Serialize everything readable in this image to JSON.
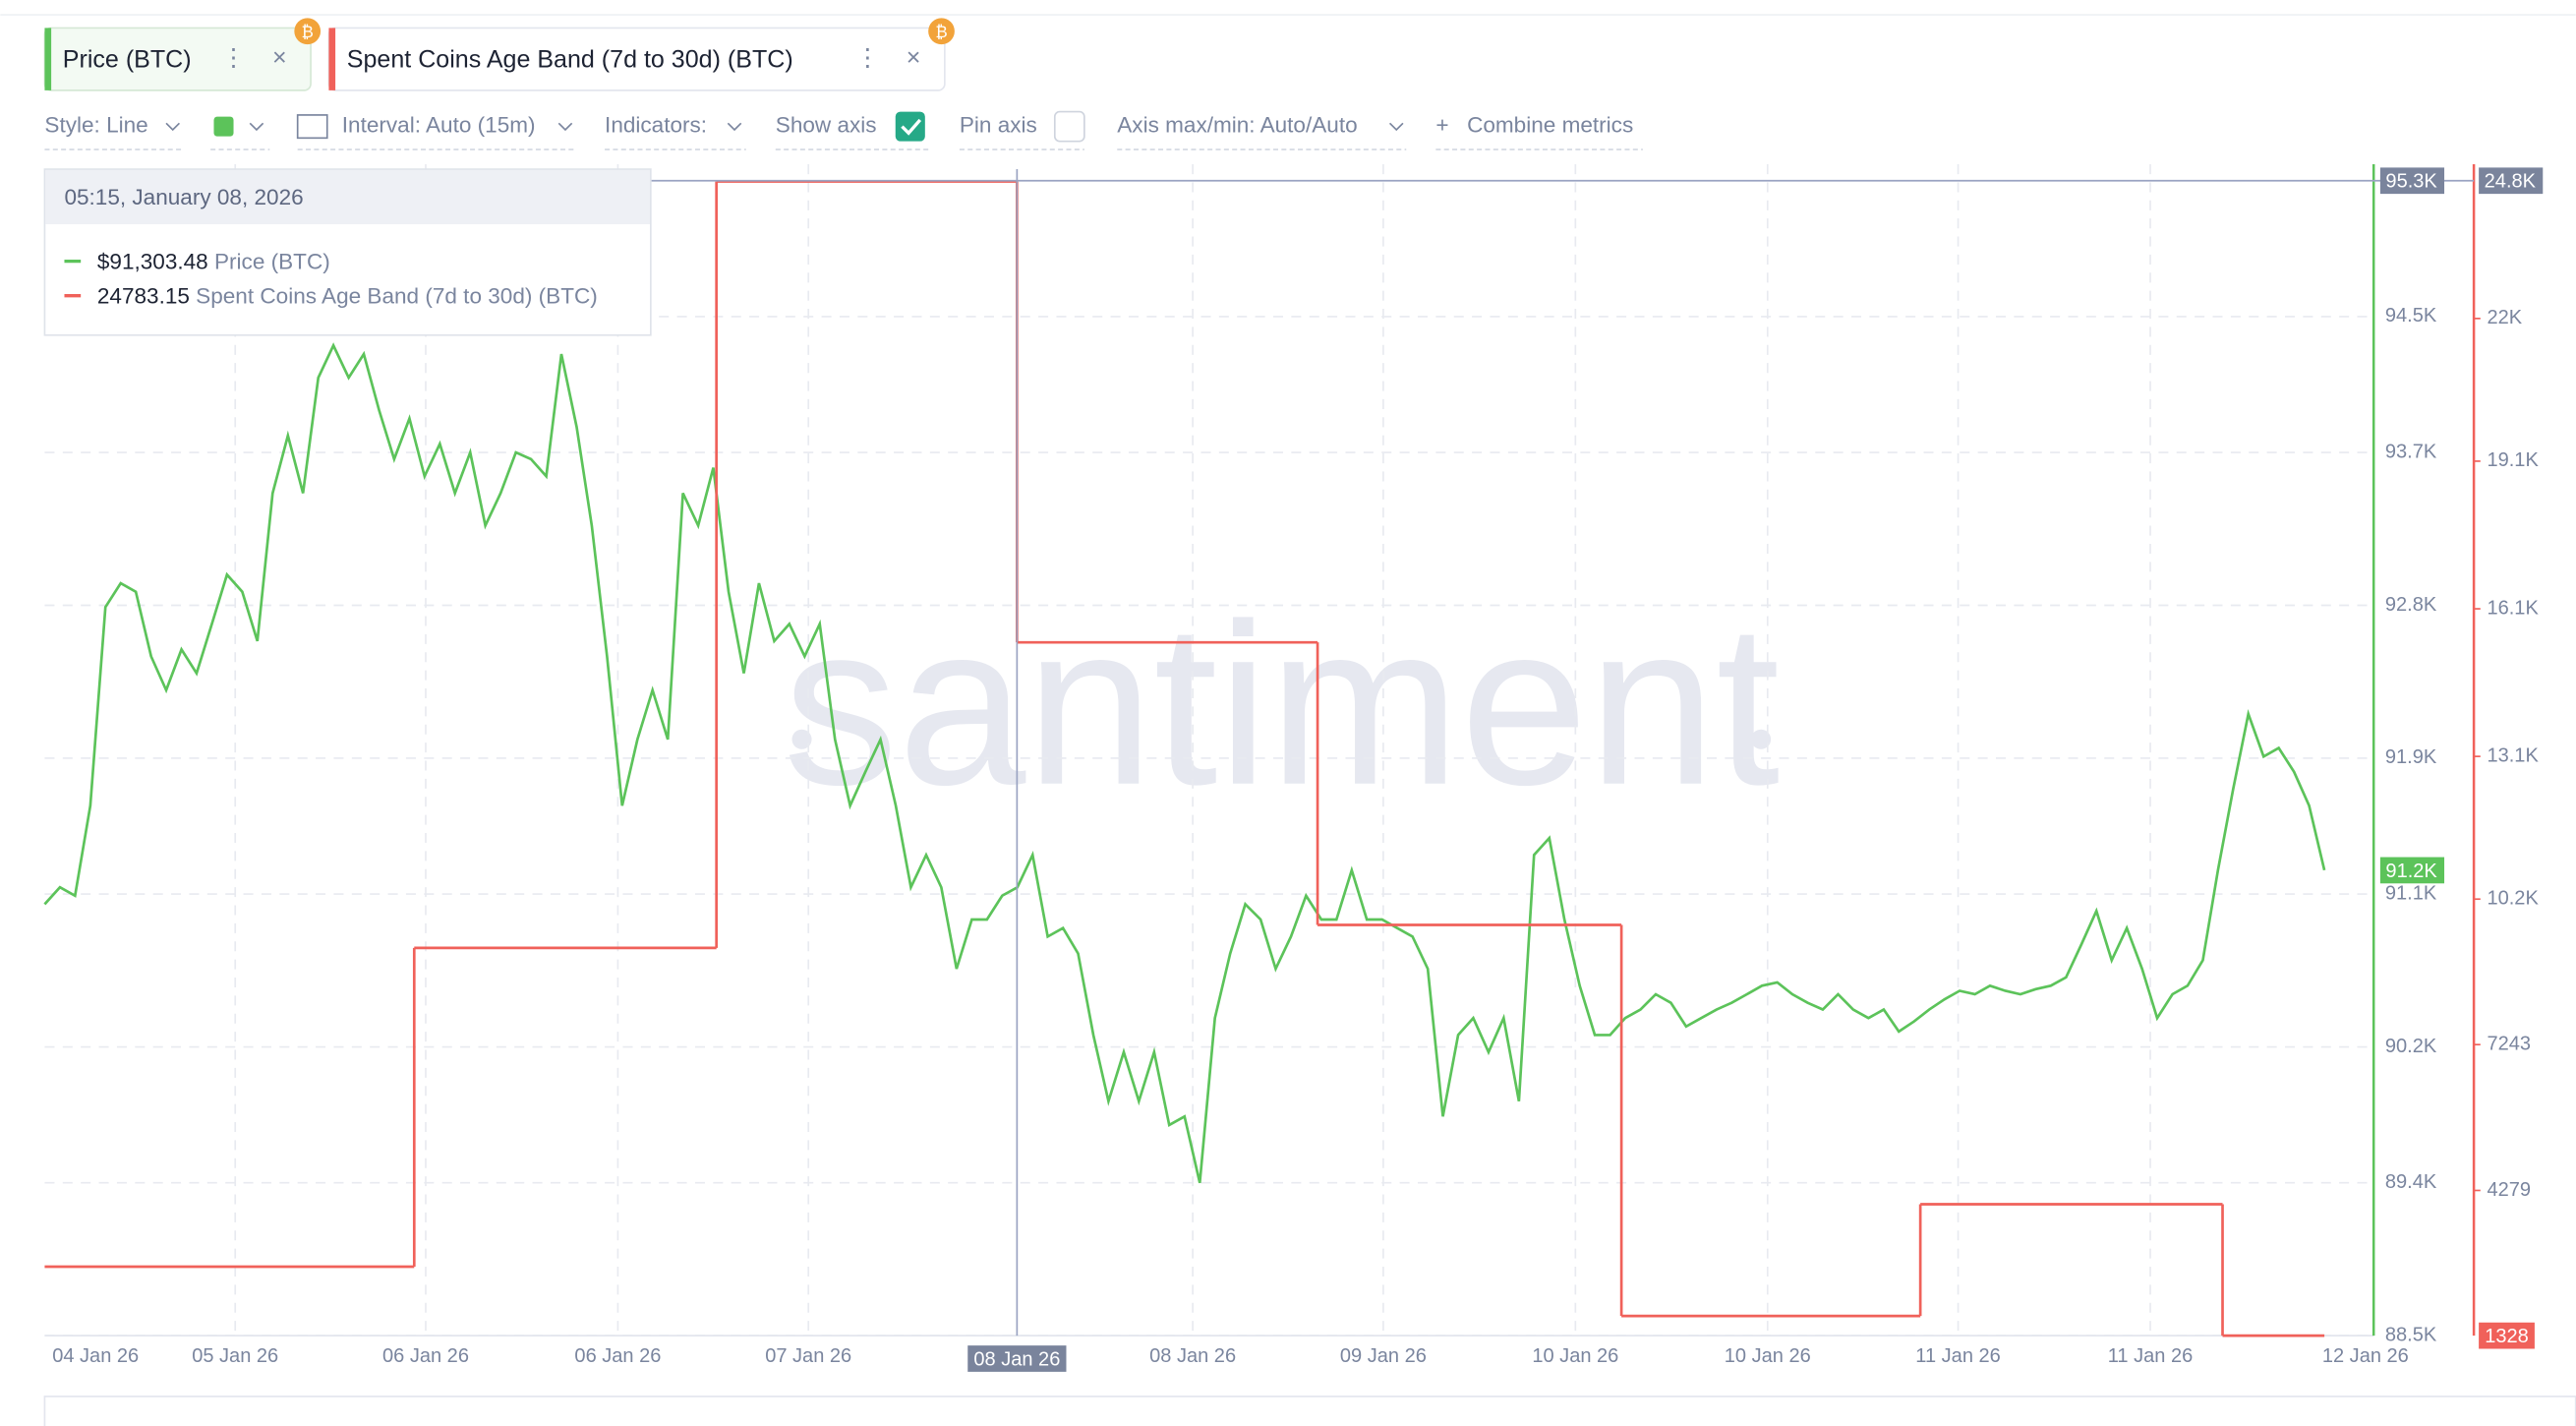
{
  "tabs": [
    "Price (BTC)",
    "Spent Coins Age Band (7d to 30d) (BTC)"
  ],
  "toolbar": {
    "style": "Style: Line",
    "interval": "Interval: Auto (15m)",
    "indicators": "Indicators:",
    "show_axis": "Show axis",
    "pin_axis": "Pin axis",
    "axis_maxmin": "Axis max/min: Auto/Auto",
    "combine": "Combine metrics"
  },
  "tooltip": {
    "date": "05:15, January 08, 2026",
    "rows": [
      {
        "value": "$91,303.48",
        "name": "Price (BTC)"
      },
      {
        "value": "24783.15",
        "name": "Spent Coins Age Band (7d to 30d) (BTC)"
      }
    ]
  },
  "watermark": "santiment",
  "chart_data": {
    "type": "line",
    "grid": true,
    "x_tick_labels": [
      "04 Jan 26",
      "05 Jan 26",
      "06 Jan 26",
      "06 Jan 26",
      "07 Jan 26",
      "08 Jan 26",
      "09 Jan 26",
      "10 Jan 26",
      "10 Jan 26",
      "11 Jan 26",
      "11 Jan 26",
      "12 Jan 26"
    ],
    "crosshair": {
      "x_label": "08 Jan 26",
      "y_label": "95.3K",
      "y2_label": "24.8K"
    },
    "ylim": [
      88500,
      95300
    ],
    "yticks": [
      {
        "value": 88500,
        "label": "88.5K"
      },
      {
        "value": 89400,
        "label": "89.4K"
      },
      {
        "value": 90200,
        "label": "90.2K"
      },
      {
        "value": 91100,
        "label": "91.1K"
      },
      {
        "value": 91900,
        "label": "91.9K"
      },
      {
        "value": 92800,
        "label": "92.8K"
      },
      {
        "value": 93700,
        "label": "93.7K"
      },
      {
        "value": 94500,
        "label": "94.5K"
      }
    ],
    "y2lim": [
      1328,
      24800
    ],
    "y2ticks": [
      4279,
      7243,
      {
        "value": 10200,
        "label": "10.2K"
      },
      {
        "value": 13100,
        "label": "13.1K"
      },
      {
        "value": 16100,
        "label": "16.1K"
      },
      {
        "value": 19100,
        "label": "19.1K"
      },
      {
        "value": 22000,
        "label": "22K"
      }
    ],
    "series": [
      {
        "name": "Price (BTC)",
        "color": "#5cc35a",
        "style": "line",
        "last_label": "91.2K",
        "values": [
          91040,
          91140,
          91090,
          91620,
          92790,
          92930,
          92880,
          92500,
          92300,
          92540,
          92400,
          92690,
          92980,
          92880,
          92590,
          93460,
          93800,
          93460,
          94140,
          94330,
          94140,
          94280,
          93950,
          93660,
          93900,
          93560,
          93750,
          93460,
          93700,
          93270,
          93460,
          93700,
          93660,
          93560,
          94280,
          93850,
          93270,
          92500,
          91620,
          92010,
          92300,
          92010,
          93460,
          93270,
          93610,
          92880,
          92400,
          92930,
          92590,
          92690,
          92500,
          92690,
          92010,
          91620,
          91820,
          92010,
          91620,
          91140,
          91330,
          91140,
          90660,
          90950,
          90950,
          91090,
          91140,
          91330,
          90850,
          90900,
          90750,
          90270,
          89880,
          90170,
          89880,
          90170,
          89740,
          89790,
          89400,
          90370,
          90750,
          91040,
          90950,
          90660,
          90850,
          91090,
          90950,
          90950,
          91240,
          90950,
          90950,
          90900,
          90850,
          90660,
          89790,
          90270,
          90370,
          90170,
          90370,
          89880,
          91330,
          91430,
          90950,
          90560,
          90270,
          90270,
          90370,
          90420,
          90510,
          90460,
          90320,
          90370,
          90420,
          90460,
          90510,
          90560,
          90580,
          90510,
          90460,
          90420,
          90510,
          90420,
          90370,
          90420,
          90290,
          90350,
          90420,
          90480,
          90530,
          90510,
          90560,
          90530,
          90510,
          90540,
          90560,
          90610,
          90800,
          91000,
          90710,
          90900,
          90660,
          90370,
          90510,
          90560,
          90710,
          91240,
          91720,
          92160,
          91910,
          91960,
          91820,
          91620,
          91240
        ]
      },
      {
        "name": "Spent Coins Age Band (7d to 30d) (BTC)",
        "color": "#f0615a",
        "style": "step",
        "axis": "y2",
        "last_label": "1328",
        "values": [
          2730,
          9208,
          24783.15,
          15418,
          9675,
          1728,
          3999,
          1328
        ]
      }
    ]
  }
}
